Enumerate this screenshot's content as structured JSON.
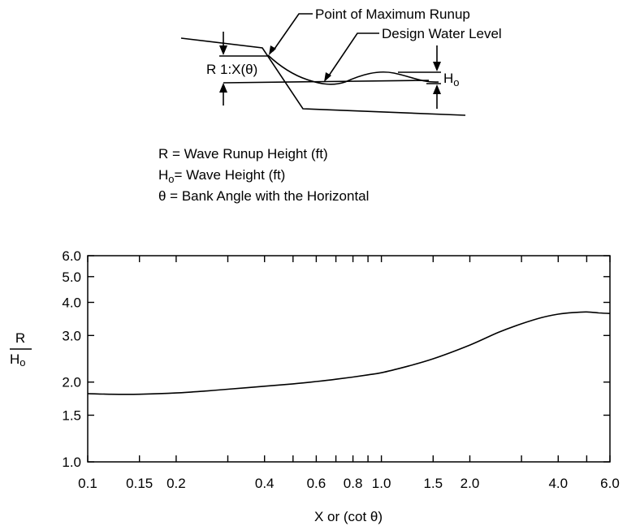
{
  "diagram": {
    "labels": {
      "point_max_runup": "Point of Maximum Runup",
      "design_water_level": "Design Water Level",
      "r_slope": "R 1:X(θ)",
      "h_main": "H",
      "h_sub": "o"
    }
  },
  "legend_text": {
    "line1": "R = Wave Runup Height (ft)",
    "line2_main": "H",
    "line2_sub": "o",
    "line2_rest": "= Wave Height (ft)",
    "line3": "θ = Bank Angle with the Horizontal"
  },
  "chart_data": {
    "type": "line",
    "xlabel": "X or (cot θ)",
    "ylabel_numerator": "R",
    "ylabel_denominator_main": "H",
    "ylabel_denominator_sub": "o",
    "x_scale": "log",
    "y_scale": "log",
    "xlim": [
      0.1,
      6.0
    ],
    "ylim": [
      1.0,
      6.0
    ],
    "grid": false,
    "x_tick_labels": [
      "0.1",
      "0.15",
      "0.2",
      "0.4",
      "0.6",
      "0.8",
      "1.0",
      "1.5",
      "2.0",
      "4.0",
      "6.0"
    ],
    "x_tick_values": [
      0.1,
      0.15,
      0.2,
      0.4,
      0.6,
      0.8,
      1.0,
      1.5,
      2.0,
      4.0,
      6.0
    ],
    "x_minor_ticks": [
      0.3,
      0.5,
      0.7,
      0.9,
      3.0,
      5.0
    ],
    "y_tick_labels": [
      "1.0",
      "1.5",
      "2.0",
      "3.0",
      "4.0",
      "5.0",
      "6.0"
    ],
    "y_tick_values": [
      1.0,
      1.5,
      2.0,
      3.0,
      4.0,
      5.0,
      6.0
    ],
    "series": [
      {
        "x": [
          0.1,
          0.12,
          0.15,
          0.2,
          0.25,
          0.3,
          0.4,
          0.5,
          0.6,
          0.7,
          0.8,
          0.9,
          1.0,
          1.2,
          1.5,
          2.0,
          2.5,
          3.0,
          3.5,
          4.0,
          4.5,
          5.0,
          5.5,
          6.0
        ],
        "y": [
          1.81,
          1.8,
          1.8,
          1.82,
          1.85,
          1.88,
          1.93,
          1.97,
          2.01,
          2.05,
          2.09,
          2.13,
          2.17,
          2.28,
          2.45,
          2.76,
          3.08,
          3.32,
          3.5,
          3.61,
          3.66,
          3.68,
          3.65,
          3.63
        ]
      }
    ]
  }
}
